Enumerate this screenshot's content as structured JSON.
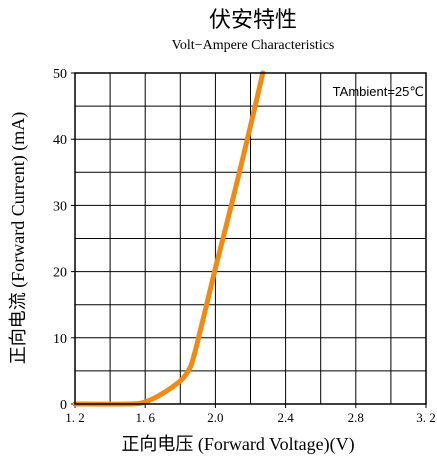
{
  "chart_data": {
    "type": "line",
    "title": "伏安特性",
    "subtitle": "Volt−Ampere Characteristics",
    "xlabel": "正向电压 (Forward Voltage)(V)",
    "ylabel": "正向电流 (Forward Current) (mA)",
    "annotation": "TAmbient=25℃",
    "xlim": [
      1.2,
      3.2
    ],
    "ylim": [
      0,
      50
    ],
    "grid": true,
    "x_ticks": [
      1.2,
      1.6,
      2.0,
      2.4,
      2.8,
      3.2
    ],
    "x_tick_labels": [
      "1. 2",
      "1. 6",
      "2.0",
      "2.4",
      "2.8",
      "3. 2"
    ],
    "y_ticks": [
      0,
      10,
      20,
      30,
      40,
      50
    ],
    "y_tick_labels": [
      "0",
      "10",
      "20",
      "30",
      "40",
      "50"
    ],
    "series": [
      {
        "color": "#f08a12",
        "x": [
          1.2,
          1.5,
          1.6,
          1.7,
          1.8,
          1.85,
          1.88,
          1.95,
          2.0,
          2.1,
          2.2,
          2.27
        ],
        "y": [
          0,
          0,
          0.3,
          1.6,
          3.5,
          5.2,
          7.5,
          15,
          20.5,
          31,
          42,
          50
        ]
      }
    ]
  }
}
